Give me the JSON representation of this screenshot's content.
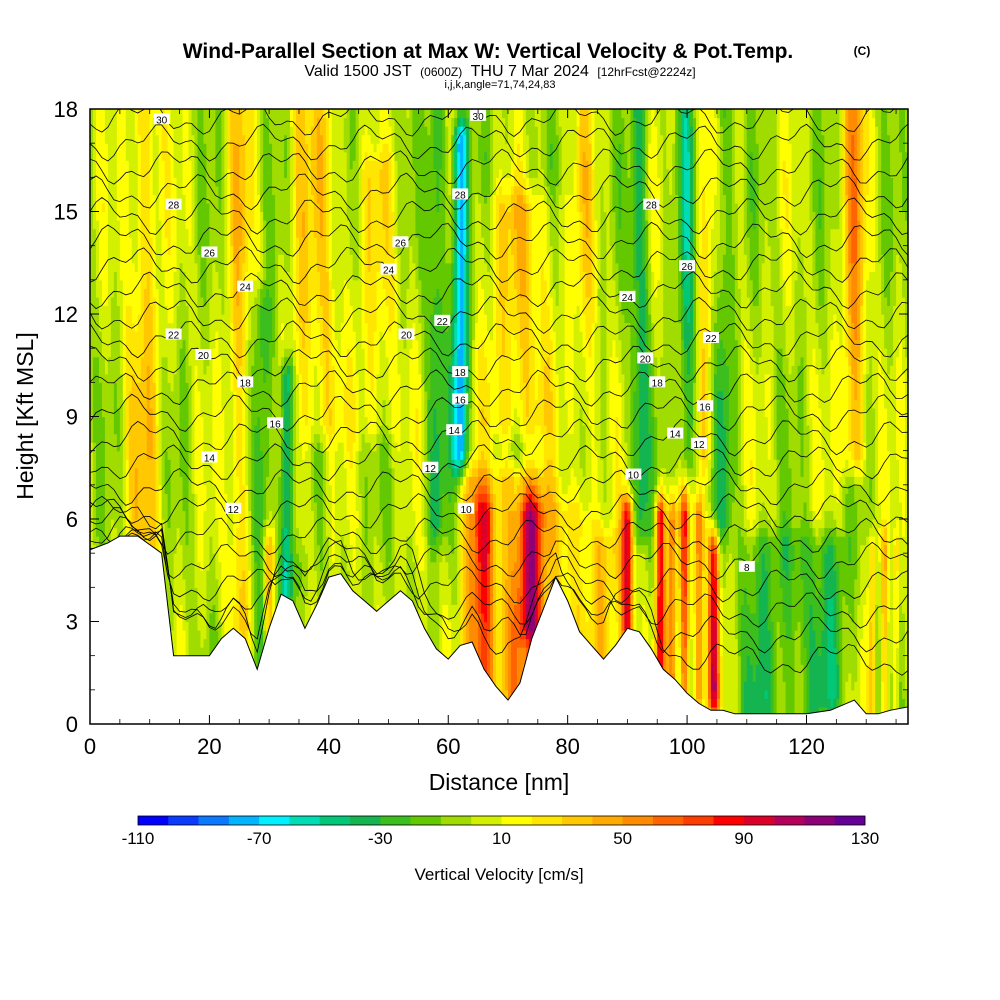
{
  "header": {
    "title": "Wind-Parallel Section at Max W: Vertical Velocity & Pot.Temp.",
    "copyright": "(C)",
    "valid_prefix": "Valid 1500 JST",
    "valid_utc": "(0600Z)",
    "valid_date": "THU 7 Mar 2024",
    "forecast": "[12hrFcst@2224z]",
    "indices": "i,j,k,angle=71,74,24,83"
  },
  "colors": {
    "terrain": "#ffffff",
    "frame": "#000000",
    "contour": "#000000",
    "palette": [
      "#0000ff",
      "#0a3cff",
      "#0a78ff",
      "#00b4ff",
      "#00f0ff",
      "#00dcb4",
      "#00c878",
      "#14b450",
      "#3cbe1e",
      "#64c800",
      "#a0dc00",
      "#d2f000",
      "#ffff00",
      "#ffe600",
      "#ffc800",
      "#ffaa00",
      "#ff8c00",
      "#ff6400",
      "#ff3c00",
      "#ff0000",
      "#dc0028",
      "#b4005a",
      "#8c0078",
      "#640096"
    ]
  },
  "chart_data": {
    "type": "heatmap",
    "title": "Wind-Parallel Section at Max W: Vertical Velocity & Pot.Temp.",
    "xlabel": "Distance [nm]",
    "ylabel": "Height [Kft MSL]",
    "xlim": [
      0,
      137
    ],
    "ylim": [
      0,
      18
    ],
    "x_ticks": [
      0,
      20,
      40,
      60,
      80,
      100,
      120
    ],
    "y_ticks": [
      0,
      3,
      6,
      9,
      12,
      15,
      18
    ],
    "colorbar": {
      "label": "Vertical Velocity [cm/s]",
      "min": -110,
      "max": 130,
      "step": 10,
      "tick_values": [
        -110,
        -70,
        -30,
        10,
        50,
        90,
        130
      ]
    },
    "terrain_profile": {
      "distance_nm": [
        0,
        3,
        5,
        8,
        12,
        14,
        20,
        22,
        24,
        26,
        28,
        30,
        32,
        34,
        36,
        38,
        40,
        42,
        44,
        46,
        48,
        50,
        52,
        54,
        56,
        58,
        60,
        62,
        64,
        66,
        68,
        70,
        72,
        74,
        76,
        78,
        80,
        82,
        84,
        86,
        88,
        90,
        92,
        94,
        96,
        98,
        100,
        102,
        104,
        106,
        108,
        110,
        112,
        116,
        120,
        124,
        128,
        130,
        132,
        134,
        137
      ],
      "height_kft": [
        5.1,
        5.3,
        5.5,
        5.5,
        5.0,
        2.0,
        2.0,
        2.5,
        2.8,
        2.5,
        1.6,
        2.8,
        3.8,
        3.6,
        2.8,
        3.5,
        4.3,
        4.4,
        3.9,
        3.6,
        3.3,
        3.6,
        3.9,
        3.6,
        2.8,
        2.2,
        1.9,
        2.3,
        2.4,
        1.6,
        1.1,
        0.7,
        1.2,
        2.5,
        3.4,
        4.3,
        3.6,
        2.7,
        2.3,
        1.9,
        2.3,
        2.8,
        2.7,
        2.2,
        1.6,
        1.3,
        0.9,
        0.6,
        0.4,
        0.4,
        0.3,
        0.3,
        0.3,
        0.3,
        0.3,
        0.4,
        0.7,
        0.3,
        0.3,
        0.4,
        0.5
      ]
    },
    "theta_contours": {
      "unit": "C",
      "labels": [
        {
          "value": 30,
          "x": 12,
          "y": 17.7
        },
        {
          "value": 30,
          "x": 65,
          "y": 17.8
        },
        {
          "value": 28,
          "x": 14,
          "y": 15.2
        },
        {
          "value": 28,
          "x": 62,
          "y": 15.5
        },
        {
          "value": 28,
          "x": 94,
          "y": 15.2
        },
        {
          "value": 26,
          "x": 20,
          "y": 13.8
        },
        {
          "value": 26,
          "x": 52,
          "y": 14.1
        },
        {
          "value": 26,
          "x": 100,
          "y": 13.4
        },
        {
          "value": 24,
          "x": 26,
          "y": 12.8
        },
        {
          "value": 24,
          "x": 50,
          "y": 13.3
        },
        {
          "value": 24,
          "x": 90,
          "y": 12.5
        },
        {
          "value": 22,
          "x": 14,
          "y": 11.4
        },
        {
          "value": 22,
          "x": 59,
          "y": 11.8
        },
        {
          "value": 22,
          "x": 104,
          "y": 11.3
        },
        {
          "value": 20,
          "x": 19,
          "y": 10.8
        },
        {
          "value": 20,
          "x": 53,
          "y": 11.4
        },
        {
          "value": 20,
          "x": 93,
          "y": 10.7
        },
        {
          "value": 18,
          "x": 26,
          "y": 10.0
        },
        {
          "value": 18,
          "x": 62,
          "y": 10.3
        },
        {
          "value": 18,
          "x": 95,
          "y": 10.0
        },
        {
          "value": 16,
          "x": 31,
          "y": 8.8
        },
        {
          "value": 16,
          "x": 62,
          "y": 9.5
        },
        {
          "value": 16,
          "x": 103,
          "y": 9.3
        },
        {
          "value": 14,
          "x": 20,
          "y": 7.8
        },
        {
          "value": 14,
          "x": 61,
          "y": 8.6
        },
        {
          "value": 14,
          "x": 98,
          "y": 8.5
        },
        {
          "value": 12,
          "x": 24,
          "y": 6.3
        },
        {
          "value": 12,
          "x": 57,
          "y": 7.5
        },
        {
          "value": 12,
          "x": 102,
          "y": 8.2
        },
        {
          "value": 10,
          "x": 63,
          "y": 6.3
        },
        {
          "value": 10,
          "x": 91,
          "y": 7.3
        },
        {
          "value": 8,
          "x": 110,
          "y": 4.6
        }
      ]
    },
    "w_field": {
      "unit": "cm/s",
      "background": 0,
      "features": [
        {
          "x": 9,
          "w": 3,
          "y0": 5,
          "y1": 18,
          "val": 30
        },
        {
          "x": 25,
          "w": 2,
          "y0": 3,
          "y1": 18,
          "val": 30
        },
        {
          "x": 29,
          "w": 1.5,
          "y0": 2,
          "y1": 12,
          "val": -30
        },
        {
          "x": 33,
          "w": 1.2,
          "y0": 4,
          "y1": 10,
          "val": -60
        },
        {
          "x": 30,
          "w": 1,
          "y0": 2,
          "y1": 5,
          "val": 50
        },
        {
          "x": 35,
          "w": 2,
          "y0": 6,
          "y1": 18,
          "val": 20
        },
        {
          "x": 39,
          "w": 3,
          "y0": 9,
          "y1": 18,
          "val": 25
        },
        {
          "x": 48,
          "w": 4,
          "y0": 9,
          "y1": 16,
          "val": 20
        },
        {
          "x": 58,
          "w": 1.5,
          "y0": 6,
          "y1": 18,
          "val": -30
        },
        {
          "x": 62,
          "w": 1.3,
          "y0": 8,
          "y1": 17,
          "val": -80
        },
        {
          "x": 64,
          "w": 2,
          "y0": 1,
          "y1": 7,
          "val": 40
        },
        {
          "x": 66,
          "w": 1.5,
          "y0": 1,
          "y1": 6,
          "val": 60
        },
        {
          "x": 72,
          "w": 5,
          "y0": 1,
          "y1": 7,
          "val": 45
        },
        {
          "x": 74,
          "w": 2,
          "y0": 3,
          "y1": 6,
          "val": 70
        },
        {
          "x": 72,
          "w": 6,
          "y0": 9,
          "y1": 15,
          "val": 30
        },
        {
          "x": 80,
          "w": 3,
          "y0": 2,
          "y1": 6,
          "val": 20
        },
        {
          "x": 83,
          "w": 2,
          "y0": 6,
          "y1": 18,
          "val": 20
        },
        {
          "x": 86,
          "w": 3,
          "y0": 2,
          "y1": 5,
          "val": 35
        },
        {
          "x": 90,
          "w": 1,
          "y0": 3,
          "y1": 6,
          "val": 95
        },
        {
          "x": 92,
          "w": 1.5,
          "y0": 6,
          "y1": 18,
          "val": -35
        },
        {
          "x": 95.5,
          "w": 0.8,
          "y0": 1,
          "y1": 6,
          "val": 90
        },
        {
          "x": 97.5,
          "w": 0.8,
          "y0": 1,
          "y1": 6,
          "val": 60
        },
        {
          "x": 99.5,
          "w": 0.8,
          "y0": 1,
          "y1": 6,
          "val": 70
        },
        {
          "x": 102,
          "w": 0.8,
          "y0": 1,
          "y1": 6,
          "val": 60
        },
        {
          "x": 104.5,
          "w": 1,
          "y0": 1,
          "y1": 5,
          "val": 90
        },
        {
          "x": 100,
          "w": 1.5,
          "y0": 8,
          "y1": 18,
          "val": -35
        },
        {
          "x": 103,
          "w": 1.5,
          "y0": 8,
          "y1": 18,
          "val": 25
        },
        {
          "x": 106,
          "w": 1.5,
          "y0": 6,
          "y1": 18,
          "val": -25
        },
        {
          "x": 112,
          "w": 3,
          "y0": 0,
          "y1": 5,
          "val": -25
        },
        {
          "x": 118,
          "w": 4,
          "y0": 0,
          "y1": 5,
          "val": -20
        },
        {
          "x": 124,
          "w": 3,
          "y0": 1,
          "y1": 5,
          "val": -30
        },
        {
          "x": 128,
          "w": 2,
          "y0": 8,
          "y1": 18,
          "val": 45
        },
        {
          "x": 131,
          "w": 0.6,
          "y0": 0.5,
          "y1": 5,
          "val": 35
        },
        {
          "x": 133,
          "w": 0.6,
          "y0": 0.5,
          "y1": 5,
          "val": 35
        },
        {
          "x": 135,
          "w": 0.6,
          "y0": 0.5,
          "y1": 5,
          "val": 30
        }
      ]
    }
  }
}
